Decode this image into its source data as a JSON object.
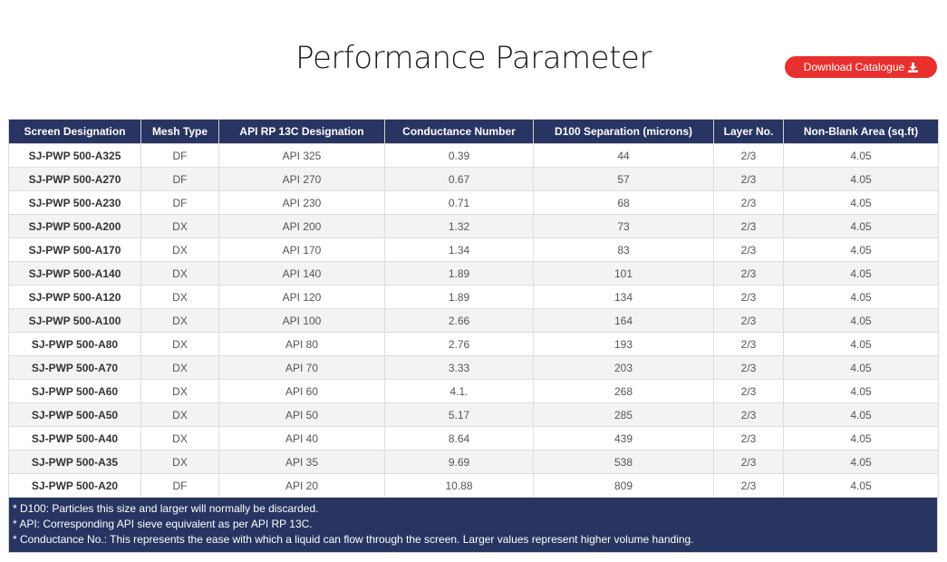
{
  "page": {
    "title": "Performance Parameter",
    "download_label": "Download Catalogue"
  },
  "table": {
    "headers": [
      "Screen Designation",
      "Mesh Type",
      "API RP 13C Designation",
      "Conductance Number",
      "D100 Separation (microns)",
      "Layer No.",
      "Non-Blank Area (sq.ft)"
    ],
    "rows": [
      [
        "SJ-PWP 500-A325",
        "DF",
        "API 325",
        "0.39",
        "44",
        "2/3",
        "4.05"
      ],
      [
        "SJ-PWP 500-A270",
        "DF",
        "API 270",
        "0.67",
        "57",
        "2/3",
        "4.05"
      ],
      [
        "SJ-PWP 500-A230",
        "DF",
        "API 230",
        "0.71",
        "68",
        "2/3",
        "4.05"
      ],
      [
        "SJ-PWP 500-A200",
        "DX",
        "API 200",
        "1.32",
        "73",
        "2/3",
        "4.05"
      ],
      [
        "SJ-PWP 500-A170",
        "DX",
        "API 170",
        "1.34",
        "83",
        "2/3",
        "4.05"
      ],
      [
        "SJ-PWP 500-A140",
        "DX",
        "API 140",
        "1.89",
        "101",
        "2/3",
        "4.05"
      ],
      [
        "SJ-PWP 500-A120",
        "DX",
        "API 120",
        "1.89",
        "134",
        "2/3",
        "4.05"
      ],
      [
        "SJ-PWP 500-A100",
        "DX",
        "API 100",
        "2.66",
        "164",
        "2/3",
        "4.05"
      ],
      [
        "SJ-PWP 500-A80",
        "DX",
        "API 80",
        "2.76",
        "193",
        "2/3",
        "4.05"
      ],
      [
        "SJ-PWP 500-A70",
        "DX",
        "API 70",
        "3.33",
        "203",
        "2/3",
        "4.05"
      ],
      [
        "SJ-PWP 500-A60",
        "DX",
        "API 60",
        "4.1.",
        "268",
        "2/3",
        "4.05"
      ],
      [
        "SJ-PWP 500-A50",
        "DX",
        "API 50",
        "5.17",
        "285",
        "2/3",
        "4.05"
      ],
      [
        "SJ-PWP 500-A40",
        "DX",
        "API 40",
        "8.64",
        "439",
        "2/3",
        "4.05"
      ],
      [
        "SJ-PWP 500-A35",
        "DX",
        "API 35",
        "9.69",
        "538",
        "2/3",
        "4.05"
      ],
      [
        "SJ-PWP 500-A20",
        "DF",
        "API 20",
        "10.88",
        "809",
        "2/3",
        "4.05"
      ]
    ],
    "notes": [
      "* D100: Particles this size and larger will normally be discarded.",
      "* API: Corresponding API sieve equivalent as per API RP 13C.",
      "* Conductance No.: This represents the ease with which a liquid can flow through the screen. Larger values represent higher volume handing."
    ]
  },
  "colors": {
    "header_bg": "#283461",
    "button_bg": "#e8302e"
  },
  "icons": {
    "download": "download-icon"
  }
}
